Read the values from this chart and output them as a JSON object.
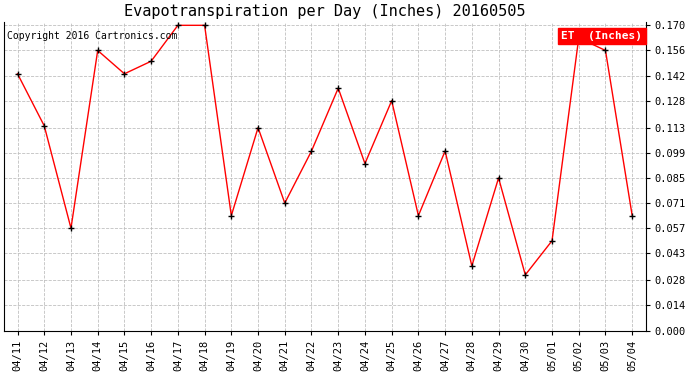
{
  "title": "Evapotranspiration per Day (Inches) 20160505",
  "copyright_text": "Copyright 2016 Cartronics.com",
  "legend_label": "ET  (Inches)",
  "dates": [
    "04/11",
    "04/12",
    "04/13",
    "04/14",
    "04/15",
    "04/16",
    "04/17",
    "04/18",
    "04/19",
    "04/20",
    "04/21",
    "04/22",
    "04/23",
    "04/24",
    "04/25",
    "04/26",
    "04/27",
    "04/28",
    "04/29",
    "04/30",
    "05/01",
    "05/02",
    "05/03",
    "05/04"
  ],
  "values": [
    0.143,
    0.114,
    0.057,
    0.156,
    0.143,
    0.15,
    0.17,
    0.17,
    0.064,
    0.113,
    0.071,
    0.1,
    0.135,
    0.093,
    0.128,
    0.064,
    0.1,
    0.036,
    0.085,
    0.031,
    0.05,
    0.163,
    0.156,
    0.064
  ],
  "line_color": "red",
  "marker_color": "black",
  "background_color": "#ffffff",
  "grid_color": "#c0c0c0",
  "ylim": [
    0.0,
    0.172
  ],
  "yticks": [
    0.0,
    0.014,
    0.028,
    0.043,
    0.057,
    0.071,
    0.085,
    0.099,
    0.113,
    0.128,
    0.142,
    0.156,
    0.17
  ],
  "title_fontsize": 11,
  "copyright_fontsize": 7,
  "legend_fontsize": 8,
  "tick_fontsize": 7.5,
  "legend_bg": "red",
  "legend_text_color": "white"
}
